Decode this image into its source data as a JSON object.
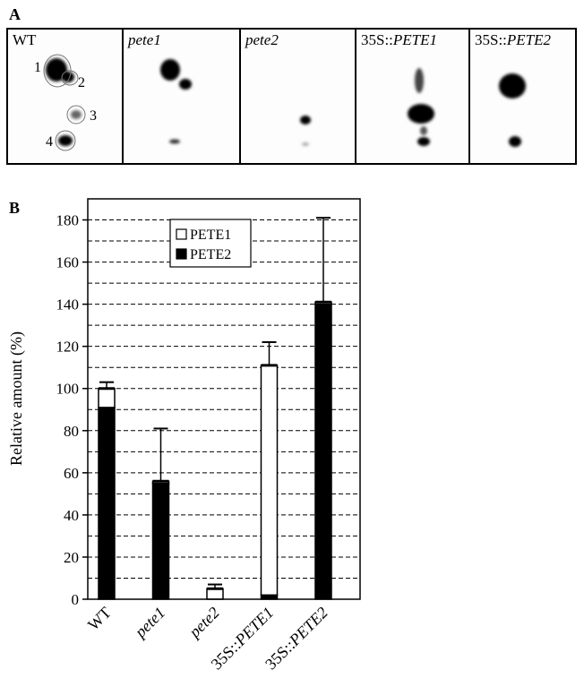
{
  "panel_a": {
    "label": "A",
    "lanes": [
      "WT",
      "pete1",
      "pete2",
      "35S::PETE1",
      "35S::PETE2"
    ],
    "spots": [
      "1",
      "2",
      "3",
      "4"
    ]
  },
  "panel_b_label": "B",
  "chart_data": {
    "type": "stacked-bar",
    "y_label": "Relative amount (%)",
    "categories": [
      "WT",
      "pete1",
      "pete2",
      "35S::PETE1",
      "35S::PETE2"
    ],
    "series": [
      {
        "name": "PETE1",
        "color": "#ffffff",
        "values": [
          9,
          1,
          5,
          109,
          1
        ],
        "errors": [
          3,
          25,
          2,
          11,
          40
        ]
      },
      {
        "name": "PETE2",
        "color": "#000000",
        "values": [
          91,
          55,
          0,
          2,
          140
        ]
      }
    ],
    "ylim": [
      0,
      190
    ],
    "yticks": [
      0,
      20,
      40,
      60,
      80,
      100,
      120,
      140,
      160,
      180
    ],
    "grid_values": [
      10,
      20,
      30,
      40,
      50,
      60,
      70,
      80,
      90,
      100,
      110,
      120,
      130,
      140,
      150,
      160,
      170,
      180
    ],
    "grid_style": "dashed",
    "legend": "top-center"
  }
}
